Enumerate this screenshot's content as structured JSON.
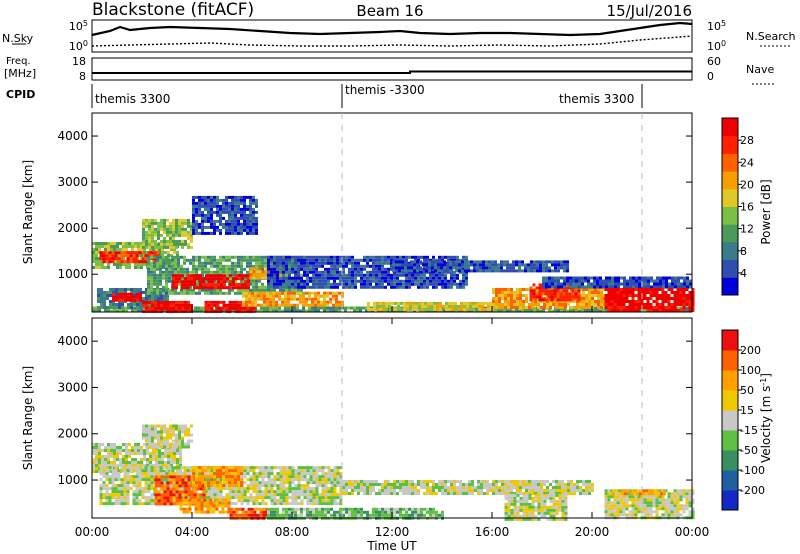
{
  "header": {
    "station": "Blackstone (fitACF)",
    "beam": "Beam 16",
    "date": "15/Jul/2016"
  },
  "noise_panel": {
    "left_label": "N.Sky",
    "left_ticks": [
      "10^5",
      "10^0"
    ],
    "right_label": "N.Search",
    "right_ticks": [
      "10^5",
      "10^0"
    ]
  },
  "freq_panel": {
    "left_label_1": "Freq.",
    "left_label_2": "[MHz]",
    "left_ticks": [
      "18",
      "8"
    ],
    "right_label": "Nave",
    "right_ticks": [
      "60",
      "0"
    ]
  },
  "cpid_panel": {
    "label": "CPID",
    "segments": [
      {
        "label": "themis 3300",
        "start_hour": 0,
        "end_hour": 10
      },
      {
        "label": "themis -3300",
        "start_hour": 10,
        "end_hour": 22
      },
      {
        "label": "themis 3300",
        "start_hour": 22,
        "end_hour": 24
      }
    ],
    "displayed_labels": [
      "themis 3300",
      "themis -3300",
      "themis 3300"
    ]
  },
  "x_axis": {
    "label": "Time UT",
    "ticks": [
      "00:00",
      "04:00",
      "08:00",
      "12:00",
      "16:00",
      "20:00",
      "00:00"
    ]
  },
  "chart_data": [
    {
      "type": "heatmap",
      "panel": "power",
      "ylabel": "Slant Range [km]",
      "yticks": [
        1000,
        2000,
        3000,
        4000
      ],
      "ylim": [
        180,
        4500
      ],
      "xlim_hours": [
        0,
        24
      ],
      "colorbar_label": "Power [dB]",
      "colorbar_ticks": [
        "28",
        "24",
        "20",
        "16",
        "12",
        "8",
        "4"
      ],
      "colors": [
        "#0000dc",
        "#2e4fb0",
        "#3a7a8a",
        "#4a9a5a",
        "#7ac046",
        "#e0c828",
        "#f5a000",
        "#ff6000",
        "#ff2000",
        "#ee0000"
      ],
      "regions": [
        {
          "t0": 0.0,
          "t1": 3.4,
          "r0": 1150,
          "r1": 1700,
          "level": 4
        },
        {
          "t0": 0.3,
          "t1": 2.6,
          "r0": 1250,
          "r1": 1500,
          "level": 8
        },
        {
          "t0": 2.0,
          "t1": 4.0,
          "r0": 1600,
          "r1": 2200,
          "level": 4
        },
        {
          "t0": 4.0,
          "t1": 6.6,
          "r0": 1900,
          "r1": 2700,
          "level": 1
        },
        {
          "t0": 0.0,
          "t1": 24.0,
          "r0": 180,
          "r1": 300,
          "level": 3
        },
        {
          "t0": 0.2,
          "t1": 3.0,
          "r0": 300,
          "r1": 700,
          "level": 2
        },
        {
          "t0": 0.8,
          "t1": 2.0,
          "r0": 450,
          "r1": 600,
          "level": 9
        },
        {
          "t0": 2.2,
          "t1": 8.5,
          "r0": 600,
          "r1": 1400,
          "level": 3
        },
        {
          "t0": 3.2,
          "t1": 6.3,
          "r0": 700,
          "r1": 1000,
          "level": 9
        },
        {
          "t0": 6.3,
          "t1": 7.6,
          "r0": 900,
          "r1": 1150,
          "level": 6
        },
        {
          "t0": 2.0,
          "t1": 4.0,
          "r0": 200,
          "r1": 420,
          "level": 9
        },
        {
          "t0": 4.5,
          "t1": 6.5,
          "r0": 200,
          "r1": 420,
          "level": 9
        },
        {
          "t0": 6.0,
          "t1": 10.0,
          "r0": 320,
          "r1": 620,
          "level": 6
        },
        {
          "t0": 7.0,
          "t1": 15.0,
          "r0": 700,
          "r1": 1400,
          "level": 1
        },
        {
          "t0": 12.0,
          "t1": 19.0,
          "r0": 1050,
          "r1": 1300,
          "level": 1
        },
        {
          "t0": 11.0,
          "t1": 16.0,
          "r0": 230,
          "r1": 400,
          "level": 5
        },
        {
          "t0": 16.0,
          "t1": 20.5,
          "r0": 300,
          "r1": 700,
          "level": 6
        },
        {
          "t0": 17.5,
          "t1": 19.5,
          "r0": 450,
          "r1": 800,
          "level": 8
        },
        {
          "t0": 18.0,
          "t1": 24.0,
          "r0": 750,
          "r1": 950,
          "level": 1
        },
        {
          "t0": 20.5,
          "t1": 24.0,
          "r0": 200,
          "r1": 700,
          "level": 9
        }
      ]
    },
    {
      "type": "heatmap",
      "panel": "velocity",
      "ylabel": "Slant Range [km]",
      "yticks": [
        1000,
        2000,
        3000,
        4000
      ],
      "ylim": [
        180,
        4500
      ],
      "xlim_hours": [
        0,
        24
      ],
      "colorbar_label": "Velocity [m s^-1]",
      "colorbar_ticks": [
        "200",
        "100",
        "50",
        "15",
        "-15",
        "-50",
        "-100",
        "-200"
      ],
      "colors": [
        "#1428c8",
        "#2060a0",
        "#389060",
        "#5cc040",
        "#c8c8c8",
        "#f0c800",
        "#ffa000",
        "#ff6000",
        "#ee1010"
      ],
      "regions": [
        {
          "t0": 0.0,
          "t1": 3.5,
          "r0": 1200,
          "r1": 1800,
          "level": 4
        },
        {
          "t0": 2.0,
          "t1": 4.0,
          "r0": 1700,
          "r1": 2200,
          "level": 4
        },
        {
          "t0": 0.3,
          "t1": 10.0,
          "r0": 500,
          "r1": 1300,
          "level": 4
        },
        {
          "t0": 2.5,
          "t1": 4.5,
          "r0": 500,
          "r1": 1100,
          "level": 7
        },
        {
          "t0": 4.0,
          "t1": 6.0,
          "r0": 900,
          "r1": 1300,
          "level": 6
        },
        {
          "t0": 3.5,
          "t1": 5.5,
          "r0": 300,
          "r1": 600,
          "level": 6
        },
        {
          "t0": 5.5,
          "t1": 7.0,
          "r0": 180,
          "r1": 400,
          "level": 7
        },
        {
          "t0": 7.0,
          "t1": 14.0,
          "r0": 180,
          "r1": 400,
          "level": 3
        },
        {
          "t0": 10.0,
          "t1": 20.0,
          "r0": 700,
          "r1": 1000,
          "level": 4
        },
        {
          "t0": 16.5,
          "t1": 19.0,
          "r0": 180,
          "r1": 700,
          "level": 4
        },
        {
          "t0": 20.5,
          "t1": 24.0,
          "r0": 200,
          "r1": 800,
          "level": 4
        },
        {
          "t0": 20.8,
          "t1": 23.0,
          "r0": 700,
          "r1": 800,
          "level": 6
        }
      ]
    }
  ]
}
